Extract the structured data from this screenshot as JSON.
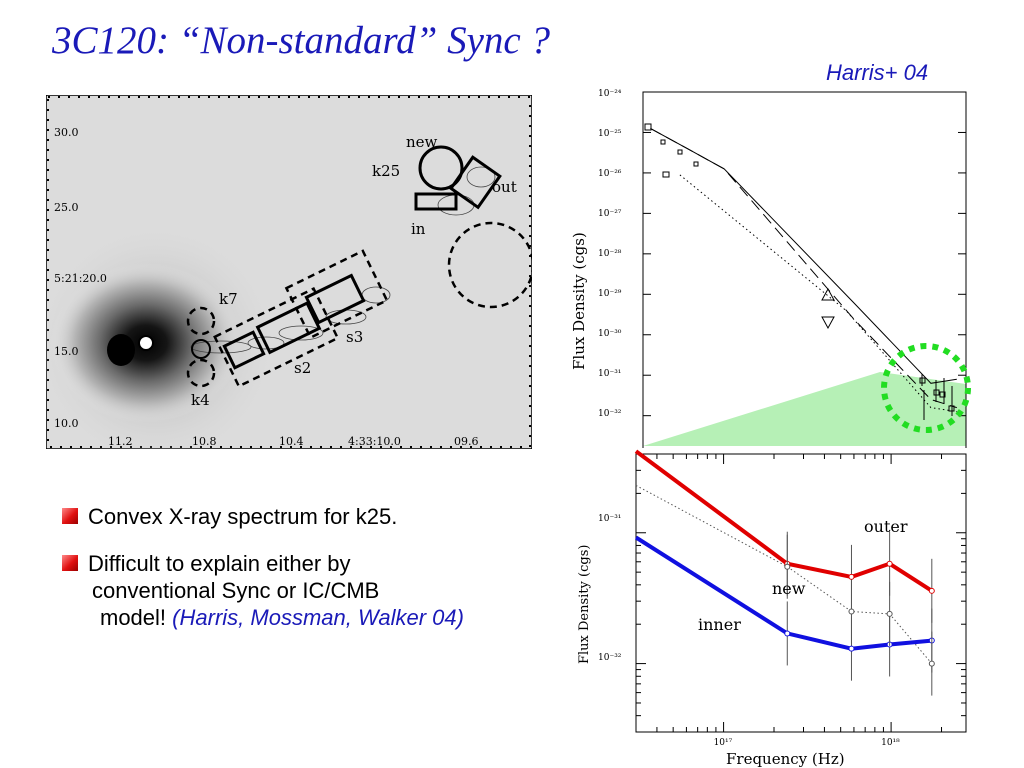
{
  "slide": {
    "title": "3C120: “Non-standard” Sync ?",
    "credit": "Harris+ 04"
  },
  "bullets": [
    {
      "text": "Convex X-ray spectrum for k25."
    },
    {
      "line1": "Difficult to explain either by",
      "line2": "conventional Sync or IC/CMB",
      "line3": "model!",
      "citation": "(Harris, Mossman, Walker 04)"
    }
  ],
  "xray_image": {
    "dec_ticks": [
      "30.0",
      "25.0",
      "5:21:20.0",
      "15.0",
      "10.0"
    ],
    "ra_ticks": [
      "11.2",
      "10.8",
      "10.4",
      "4:33:10.0",
      "09.6"
    ],
    "region_labels": [
      "new",
      "k25",
      "out",
      "in",
      "k7",
      "s3",
      "s2",
      "k4"
    ]
  },
  "chart_data": [
    {
      "type": "line",
      "title": "",
      "ylabel": "Flux Density (cgs)",
      "xlabel": "",
      "y_scale": "log",
      "ylim": [
        1e-32,
        3e-25
      ],
      "y_tick_labels": [
        "10⁻²⁴",
        "10⁻²⁵",
        "10⁻²⁶",
        "10⁻²⁷",
        "10⁻²⁸",
        "10⁻²⁹",
        "10⁻³⁰",
        "10⁻³¹",
        "10⁻³²"
      ],
      "series": [
        {
          "style": "solid",
          "points": [
            [
              9.0,
              -24.9
            ],
            [
              10.0,
              -25.4
            ],
            [
              11.0,
              -25.9
            ],
            [
              14.5,
              -29.2
            ],
            [
              16.6,
              -31.2
            ],
            [
              17.3,
              -31.1
            ]
          ]
        },
        {
          "style": "dashed",
          "points": [
            [
              9.0,
              -24.9
            ],
            [
              10.0,
              -25.4
            ],
            [
              11.0,
              -25.9
            ],
            [
              14.5,
              -29.6
            ],
            [
              16.6,
              -31.6
            ],
            [
              17.3,
              -31.8
            ]
          ]
        },
        {
          "style": "dotted",
          "points": [
            [
              9.8,
              -26.05
            ],
            [
              14.3,
              -29.4
            ],
            [
              16.6,
              -31.8
            ],
            [
              17.3,
              -31.9
            ]
          ]
        }
      ],
      "annotations": {
        "highlight": "green dotted circle around X-ray points",
        "shaded": "light green wedge"
      }
    },
    {
      "type": "line",
      "title": "",
      "xlabel": "Frequency (Hz)",
      "ylabel": "Flux Density (cgs)",
      "x_scale": "log",
      "y_scale": "log",
      "xlim": [
        3e+16,
        2.8e+18
      ],
      "ylim": [
        3e-33,
        4e-31
      ],
      "x_tick_labels": [
        "10¹⁷",
        "10¹⁸"
      ],
      "y_tick_labels": [
        "10⁻³¹",
        "10⁻³²"
      ],
      "colors": {
        "outer": "#e00000",
        "inner": "#1010e0"
      },
      "series": [
        {
          "name": "outer",
          "color": "#e00000",
          "x": [
            3e+16,
            2.4e+17,
            5.8e+17,
            9.8e+17,
            1.75e+18
          ],
          "y": [
            4.2e-31,
            5.8e-32,
            4.6e-32,
            5.8e-32,
            3.6e-32
          ]
        },
        {
          "name": "inner",
          "color": "#1010e0",
          "x": [
            3e+16,
            2.4e+17,
            5.8e+17,
            9.8e+17,
            1.75e+18
          ],
          "y": [
            9.2e-32,
            1.7e-32,
            1.3e-32,
            1.4e-32,
            1.5e-32
          ]
        },
        {
          "name": "new",
          "color": "#555555",
          "x": [
            3e+16,
            2.4e+17,
            5.8e+17,
            9.8e+17,
            1.75e+18
          ],
          "y": [
            2.3e-31,
            5.5e-32,
            2.5e-32,
            2.4e-32,
            1e-32
          ]
        }
      ]
    }
  ]
}
